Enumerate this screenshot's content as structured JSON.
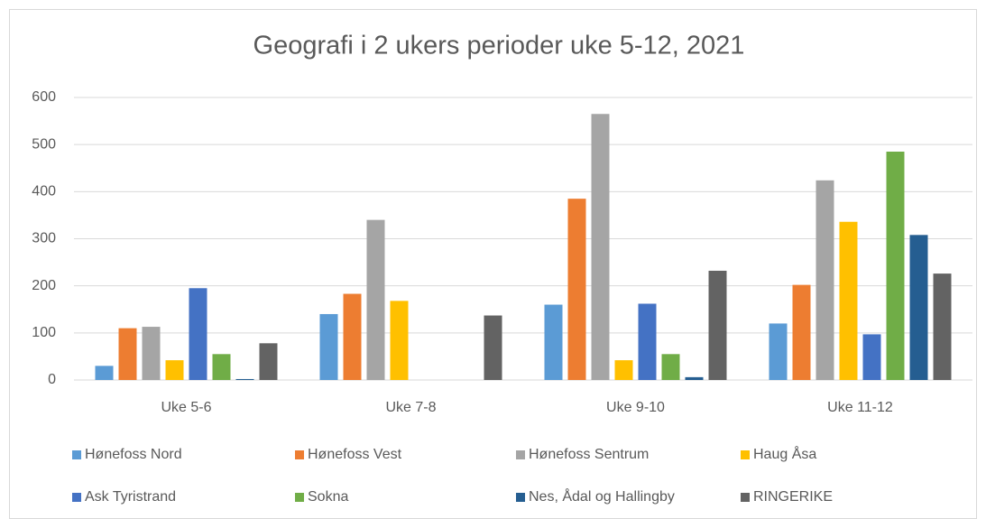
{
  "chart_data": {
    "type": "bar",
    "title": "Geografi i 2 ukers perioder uke 5-12, 2021",
    "categories": [
      "Uke 5-6",
      "Uke 7-8",
      "Uke 9-10",
      "Uke 11-12"
    ],
    "series": [
      {
        "name": "Hønefoss Nord",
        "color": "#5b9bd5",
        "values": [
          30,
          140,
          160,
          120
        ]
      },
      {
        "name": "Hønefoss Vest",
        "color": "#ed7d31",
        "values": [
          110,
          183,
          385,
          202
        ]
      },
      {
        "name": "Hønefoss Sentrum",
        "color": "#a5a5a5",
        "values": [
          113,
          340,
          565,
          424
        ]
      },
      {
        "name": "Haug Åsa",
        "color": "#ffc000",
        "values": [
          42,
          168,
          42,
          336
        ]
      },
      {
        "name": "Ask Tyristrand",
        "color": "#4472c4",
        "values": [
          195,
          0,
          162,
          97
        ]
      },
      {
        "name": "Sokna",
        "color": "#70ad47",
        "values": [
          55,
          0,
          55,
          485
        ]
      },
      {
        "name": "Nes, Ådal og Hallingby",
        "color": "#255e91",
        "values": [
          2,
          0,
          6,
          308
        ]
      },
      {
        "name": "RINGERIKE",
        "color": "#636363",
        "values": [
          78,
          137,
          232,
          226
        ]
      }
    ],
    "ylim": [
      0,
      600
    ],
    "yticks": [
      0,
      100,
      200,
      300,
      400,
      500,
      600
    ],
    "grid": true,
    "legend": "bottom"
  }
}
